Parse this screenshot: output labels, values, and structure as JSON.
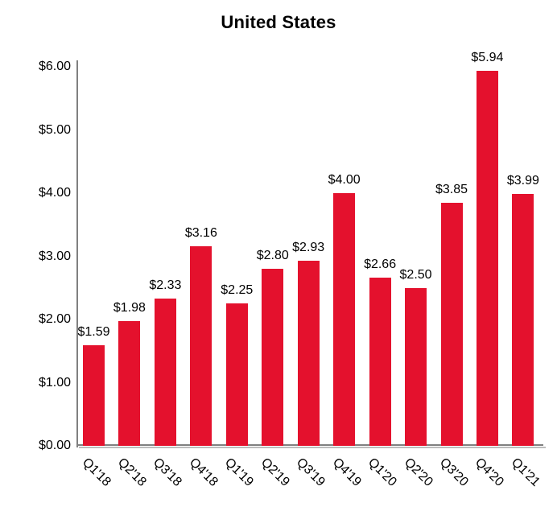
{
  "title": "United States",
  "chart_data": {
    "type": "bar",
    "title": "United States",
    "categories": [
      "Q1'18",
      "Q2'18",
      "Q3'18",
      "Q4'18",
      "Q1'19",
      "Q2'19",
      "Q3'19",
      "Q4'19",
      "Q1'20",
      "Q2'20",
      "Q3'20",
      "Q4'20",
      "Q1'21"
    ],
    "values": [
      1.59,
      1.98,
      2.33,
      3.16,
      2.25,
      2.8,
      2.93,
      4.0,
      2.66,
      2.5,
      3.85,
      5.94,
      3.99
    ],
    "value_labels": [
      "$1.59",
      "$1.98",
      "$2.33",
      "$3.16",
      "$2.25",
      "$2.80",
      "$2.93",
      "$4.00",
      "$2.66",
      "$2.50",
      "$3.85",
      "$5.94",
      "$3.99"
    ],
    "xlabel": "",
    "ylabel": "",
    "ylim": [
      0,
      6
    ],
    "y_tick_values": [
      0,
      1,
      2,
      3,
      4,
      5,
      6
    ],
    "y_tick_labels": [
      "$0.00",
      "$1.00",
      "$2.00",
      "$3.00",
      "$4.00",
      "$5.00",
      "$6.00"
    ],
    "grid": false,
    "legend_position": "none",
    "bar_color": "#E4112D",
    "axis_color": "#808080",
    "text_color": "#000000"
  }
}
